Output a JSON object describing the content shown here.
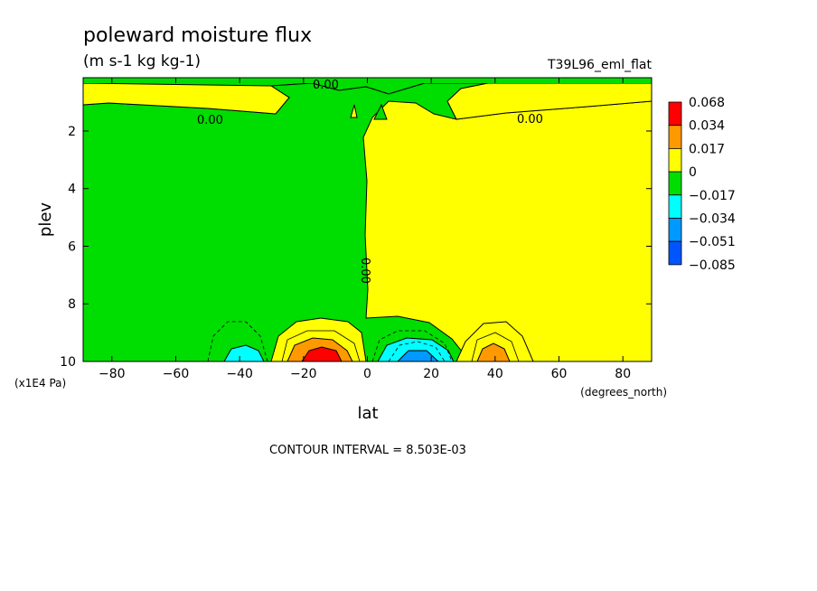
{
  "chart_data": {
    "type": "heatmap",
    "title": "poleward moisture flux",
    "subtitle": "(m s-1 kg kg-1)",
    "run_label": "T39L96_eml_flat",
    "xlabel": "lat",
    "x_units": "(degrees_north)",
    "ylabel": "plev",
    "y_units": "(x1E4 Pa)",
    "xlim": [
      -89,
      89
    ],
    "ylim": [
      0.15,
      10
    ],
    "y_inverted": true,
    "x_ticks": [
      -80,
      -60,
      -40,
      -20,
      0,
      20,
      40,
      60,
      80
    ],
    "x_tick_labels": [
      "-80",
      "-60",
      "-40",
      "-20",
      "0",
      "20",
      "40",
      "60",
      "80"
    ],
    "y_ticks": [
      2,
      4,
      6,
      8,
      10
    ],
    "y_tick_labels": [
      "2",
      "4",
      "6",
      "8",
      "10"
    ],
    "contour_interval_label": "CONTOUR INTERVAL = 8.503E-03",
    "contour_value_label": "0.00",
    "colorbar": {
      "levels": [
        "0.068",
        "0.034",
        "0.017",
        "0",
        "-0.017",
        "-0.034",
        "-0.051",
        "-0.085"
      ],
      "colors": [
        "#ff0000",
        "#ff9900",
        "#ffff00",
        "#00dd00",
        "#00ffff",
        "#0099ff",
        "#0055ff"
      ]
    },
    "features": [
      {
        "region": "southern hemisphere, 0.9–9.5 (x1E4 Pa)",
        "sign": "negative",
        "approx_value": -0.01
      },
      {
        "region": "northern hemisphere, 0.9–8.5 (x1E4 Pa)",
        "sign": "positive",
        "approx_value": 0.01
      },
      {
        "lat_center": -18,
        "plev_center": 9.85,
        "approx_value": 0.068,
        "note": "strong positive maximum"
      },
      {
        "lat_center": 12,
        "plev_center": 9.85,
        "approx_value": -0.034,
        "note": "negative minimum"
      },
      {
        "lat_center": -42,
        "plev_center": 9.8,
        "approx_value": -0.03,
        "note": "negative minimum"
      },
      {
        "lat_center": 40,
        "plev_center": 9.8,
        "approx_value": 0.025,
        "note": "positive maximum"
      }
    ]
  }
}
